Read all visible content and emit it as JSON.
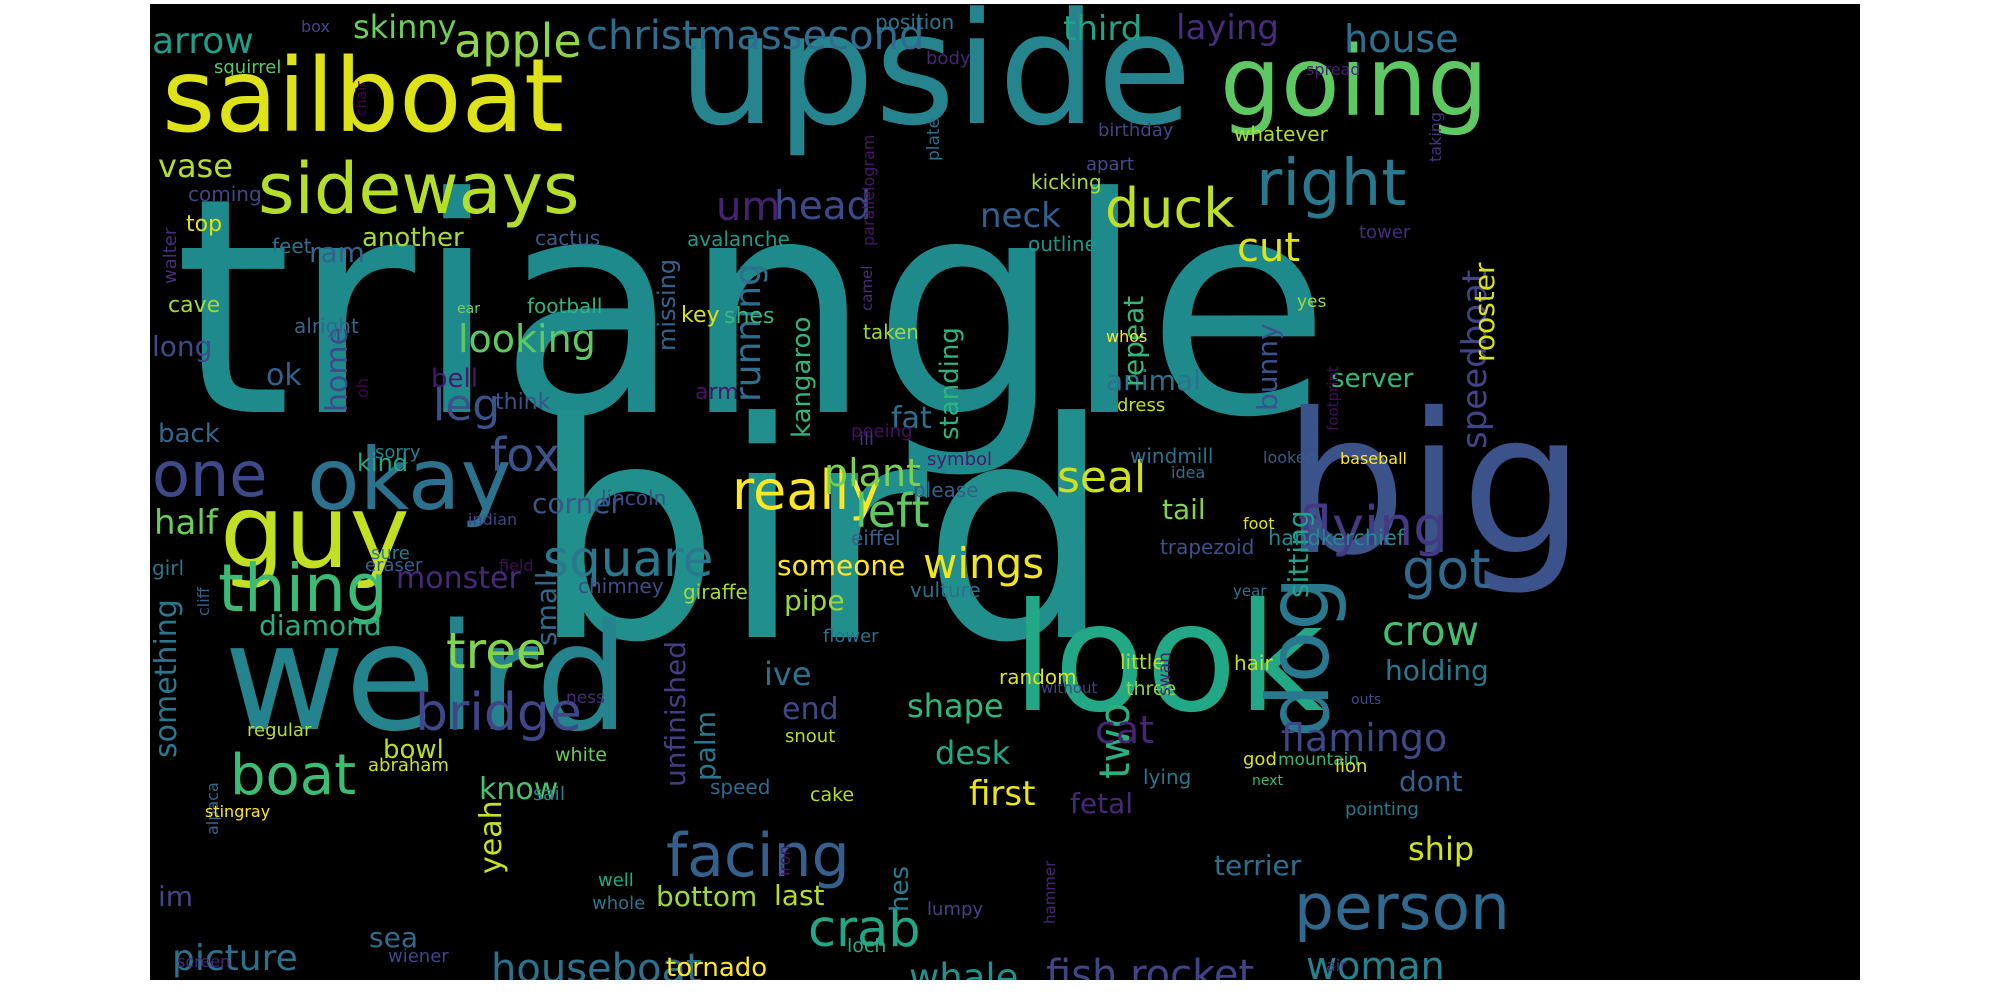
{
  "word_cloud": {
    "background": "#000000",
    "words": [
      {
        "text": "triangle",
        "color": "#1f8a8c"
      },
      {
        "text": "bird",
        "color": "#21908c"
      },
      {
        "text": "upside",
        "color": "#25848e"
      },
      {
        "text": "big",
        "color": "#3b528b"
      },
      {
        "text": "weird",
        "color": "#25838e"
      },
      {
        "text": "look",
        "color": "#22a884"
      },
      {
        "text": "sailboat",
        "color": "#dde318"
      },
      {
        "text": "going",
        "color": "#5ec962"
      },
      {
        "text": "guy",
        "color": "#c2df23"
      },
      {
        "text": "okay",
        "color": "#2c728e"
      },
      {
        "text": "dog",
        "color": "#2a788e"
      },
      {
        "text": "sideways",
        "color": "#b5de2b"
      },
      {
        "text": "right",
        "color": "#2a788e"
      },
      {
        "text": "thing",
        "color": "#3bbb75"
      },
      {
        "text": "one",
        "color": "#3e4989"
      },
      {
        "text": "person",
        "color": "#31688e"
      },
      {
        "text": "facing",
        "color": "#35608d"
      },
      {
        "text": "flying",
        "color": "#443983"
      },
      {
        "text": "boat",
        "color": "#3dbc74"
      },
      {
        "text": "bridge",
        "color": "#3f4788"
      },
      {
        "text": "tree",
        "color": "#84d44b"
      },
      {
        "text": "really",
        "color": "#fde725"
      },
      {
        "text": "duck",
        "color": "#bddf26"
      },
      {
        "text": "crab",
        "color": "#22a785"
      },
      {
        "text": "square",
        "color": "#2a788e"
      },
      {
        "text": "got",
        "color": "#31688e"
      },
      {
        "text": "houseboat",
        "color": "#2c728e"
      },
      {
        "text": "fish rocket",
        "color": "#414487"
      },
      {
        "text": "apple",
        "color": "#8ed645"
      },
      {
        "text": "christmassecond",
        "color": "#2f6c8e"
      },
      {
        "text": "house",
        "color": "#2d708e"
      },
      {
        "text": "crow",
        "color": "#43bf71"
      },
      {
        "text": "left",
        "color": "#5ec962"
      },
      {
        "text": "fox",
        "color": "#3b528b"
      },
      {
        "text": "wings",
        "color": "#f1e51d"
      },
      {
        "text": "flamingo",
        "color": "#3f4788"
      },
      {
        "text": "two",
        "color": "#2ab07f"
      },
      {
        "text": "whale",
        "color": "#21918c"
      },
      {
        "text": "woman",
        "color": "#26828e"
      },
      {
        "text": "picture",
        "color": "#2d708e"
      },
      {
        "text": "head",
        "color": "#3e4989"
      },
      {
        "text": "um",
        "color": "#482173"
      },
      {
        "text": "leg",
        "color": "#3a538b"
      },
      {
        "text": "seal",
        "color": "#d0e11c"
      },
      {
        "text": "running",
        "color": "#2d708e"
      },
      {
        "text": "looking",
        "color": "#5ec962"
      },
      {
        "text": "plant",
        "color": "#7ad151"
      },
      {
        "text": "neck",
        "color": "#355f8d"
      },
      {
        "text": "cut",
        "color": "#dde318"
      },
      {
        "text": "arrow",
        "color": "#1f9e89"
      },
      {
        "text": "skinny",
        "color": "#6ccd5a"
      },
      {
        "text": "third",
        "color": "#20a486"
      },
      {
        "text": "laying",
        "color": "#472d7b"
      },
      {
        "text": "vase",
        "color": "#b2dd2d"
      },
      {
        "text": "speedboat",
        "color": "#414487"
      },
      {
        "text": "rooster",
        "color": "#d8e219"
      },
      {
        "text": "monster",
        "color": "#482878"
      },
      {
        "text": "diamond",
        "color": "#29af7f"
      },
      {
        "text": "something",
        "color": "#2a778e"
      },
      {
        "text": "half",
        "color": "#6ccd5a"
      },
      {
        "text": "corner",
        "color": "#38588c"
      },
      {
        "text": "someone",
        "color": "#fde725"
      },
      {
        "text": "pipe",
        "color": "#98d83e"
      },
      {
        "text": "tail",
        "color": "#7fd34e"
      },
      {
        "text": "animal",
        "color": "#2c728e"
      },
      {
        "text": "bunny",
        "color": "#3b528b"
      },
      {
        "text": "sitting",
        "color": "#20a386"
      },
      {
        "text": "holding",
        "color": "#2a788e"
      },
      {
        "text": "cat",
        "color": "#482475"
      },
      {
        "text": "shape",
        "color": "#32b67a"
      },
      {
        "text": "desk",
        "color": "#22a884"
      },
      {
        "text": "first",
        "color": "#eae51a"
      },
      {
        "text": "fetal",
        "color": "#482878"
      },
      {
        "text": "dont",
        "color": "#355f8d"
      },
      {
        "text": "ship",
        "color": "#d2e21b"
      },
      {
        "text": "terrier",
        "color": "#2e6e8e"
      },
      {
        "text": "bottom",
        "color": "#9dd93b"
      },
      {
        "text": "last",
        "color": "#b5de2b"
      },
      {
        "text": "tornado",
        "color": "#fde725"
      },
      {
        "text": "yeah",
        "color": "#c8e020"
      },
      {
        "text": "know",
        "color": "#4ac16d"
      },
      {
        "text": "im",
        "color": "#3f4788"
      },
      {
        "text": "end",
        "color": "#3e4989"
      },
      {
        "text": "ive",
        "color": "#2c728e"
      },
      {
        "text": "palm",
        "color": "#2a788e"
      },
      {
        "text": "unfinished",
        "color": "#433d84"
      },
      {
        "text": "kangaroo",
        "color": "#31b57b"
      },
      {
        "text": "standing",
        "color": "#2fb47c"
      },
      {
        "text": "fat",
        "color": "#2d708e"
      },
      {
        "text": "bell",
        "color": "#481a6c"
      },
      {
        "text": "ok",
        "color": "#34618d"
      },
      {
        "text": "home",
        "color": "#3e4989"
      },
      {
        "text": "ram",
        "color": "#34618d"
      },
      {
        "text": "another",
        "color": "#a5db36"
      },
      {
        "text": "cactus",
        "color": "#365c8d"
      },
      {
        "text": "long",
        "color": "#3e4a89"
      },
      {
        "text": "back",
        "color": "#31688e"
      },
      {
        "text": "kind",
        "color": "#22a884"
      },
      {
        "text": "bowl",
        "color": "#b8de29"
      },
      {
        "text": "sea",
        "color": "#2f6c8e"
      },
      {
        "text": "hes",
        "color": "#287d8e"
      },
      {
        "text": "small",
        "color": "#31688e"
      },
      {
        "text": "repeat",
        "color": "#35b779"
      },
      {
        "text": "missing",
        "color": "#33638d"
      },
      {
        "text": "server",
        "color": "#37b878"
      },
      {
        "text": "windmill",
        "color": "#2d708e"
      },
      {
        "text": "handkerchief",
        "color": "#23898e"
      },
      {
        "text": "trapezoid",
        "color": "#3b528b"
      },
      {
        "text": "vulture",
        "color": "#2d718e"
      },
      {
        "text": "giraffe",
        "color": "#a2da37"
      },
      {
        "text": "chimney",
        "color": "#3e4c8a"
      },
      {
        "text": "eiffel",
        "color": "#34618d"
      },
      {
        "text": "lincoln",
        "color": "#3e4c8a"
      },
      {
        "text": "please",
        "color": "#355e8d"
      },
      {
        "text": "symbol",
        "color": "#481b6d"
      },
      {
        "text": "peeing",
        "color": "#471063"
      },
      {
        "text": "ill",
        "color": "#46327e"
      },
      {
        "text": "taken",
        "color": "#9bd93c"
      },
      {
        "text": "arm",
        "color": "#471365"
      },
      {
        "text": "key",
        "color": "#d8e219"
      },
      {
        "text": "shes",
        "color": "#37b878"
      },
      {
        "text": "think",
        "color": "#3b528b"
      },
      {
        "text": "football",
        "color": "#2fb47c"
      },
      {
        "text": "ear",
        "color": "#7ad151"
      },
      {
        "text": "alright",
        "color": "#31688e"
      },
      {
        "text": "oh",
        "color": "#440154"
      },
      {
        "text": "cave",
        "color": "#a0da39"
      },
      {
        "text": "walter",
        "color": "#472e7c"
      },
      {
        "text": "feet",
        "color": "#2d718e"
      },
      {
        "text": "top",
        "color": "#dde318"
      },
      {
        "text": "coming",
        "color": "#414487"
      },
      {
        "text": "squirrel",
        "color": "#5cc863"
      },
      {
        "text": "chair",
        "color": "#440154"
      },
      {
        "text": "box",
        "color": "#414487"
      },
      {
        "text": "position",
        "color": "#2a768e"
      },
      {
        "text": "body",
        "color": "#482475"
      },
      {
        "text": "parallelogram",
        "color": "#481668"
      },
      {
        "text": "plate",
        "color": "#2d708e"
      },
      {
        "text": "avalanche",
        "color": "#1f9a8a"
      },
      {
        "text": "camel",
        "color": "#472f7d"
      },
      {
        "text": "outline",
        "color": "#1f948c"
      },
      {
        "text": "kicking",
        "color": "#a8db34"
      },
      {
        "text": "apart",
        "color": "#3d4e8a"
      },
      {
        "text": "birthday",
        "color": "#404588"
      },
      {
        "text": "whatever",
        "color": "#addc30"
      },
      {
        "text": "spread",
        "color": "#482475"
      },
      {
        "text": "taking",
        "color": "#46337f"
      },
      {
        "text": "tower",
        "color": "#472c7a"
      },
      {
        "text": "yes",
        "color": "#a2da37"
      },
      {
        "text": "whos",
        "color": "#fde725"
      },
      {
        "text": "dress",
        "color": "#c0df25"
      },
      {
        "text": "footprint",
        "color": "#460b5e"
      },
      {
        "text": "baseball",
        "color": "#fde725"
      },
      {
        "text": "looked",
        "color": "#365d8d"
      },
      {
        "text": "idea",
        "color": "#2d708e"
      },
      {
        "text": "foot",
        "color": "#e2e418"
      },
      {
        "text": "year",
        "color": "#2c738e"
      },
      {
        "text": "hair",
        "color": "#c2df23"
      },
      {
        "text": "little",
        "color": "#b2dd2d"
      },
      {
        "text": "three",
        "color": "#8bd646"
      },
      {
        "text": "swan",
        "color": "#482173"
      },
      {
        "text": "god",
        "color": "#dde318"
      },
      {
        "text": "lying",
        "color": "#2a768e"
      },
      {
        "text": "mountain",
        "color": "#33b67a"
      },
      {
        "text": "lion",
        "color": "#d8e219"
      },
      {
        "text": "pointing",
        "color": "#2a788e"
      },
      {
        "text": "next",
        "color": "#38b977"
      },
      {
        "text": "outs",
        "color": "#3e4c8a"
      },
      {
        "text": "without",
        "color": "#404588"
      },
      {
        "text": "random",
        "color": "#dfe318"
      },
      {
        "text": "snout",
        "color": "#bade28"
      },
      {
        "text": "speed",
        "color": "#2f6b8e"
      },
      {
        "text": "cake",
        "color": "#b0dd2f"
      },
      {
        "text": "iron",
        "color": "#471365"
      },
      {
        "text": "hammer",
        "color": "#482677"
      },
      {
        "text": "lumpy",
        "color": "#414487"
      },
      {
        "text": "loch",
        "color": "#29af7f"
      },
      {
        "text": "well",
        "color": "#23a983"
      },
      {
        "text": "whole",
        "color": "#2c738e"
      },
      {
        "text": "sail",
        "color": "#297b8e"
      },
      {
        "text": "white",
        "color": "#69cd5b"
      },
      {
        "text": "ness",
        "color": "#472a7a"
      },
      {
        "text": "flower",
        "color": "#2c728e"
      },
      {
        "text": "field",
        "color": "#460a5d"
      },
      {
        "text": "sure",
        "color": "#287c8e"
      },
      {
        "text": "eraser",
        "color": "#34618d"
      },
      {
        "text": "girl",
        "color": "#2b748e"
      },
      {
        "text": "cliff",
        "color": "#33638d"
      },
      {
        "text": "regular",
        "color": "#b5de2b"
      },
      {
        "text": "abraham",
        "color": "#cae11f"
      },
      {
        "text": "alpaca",
        "color": "#31688e"
      },
      {
        "text": "stingray",
        "color": "#fde725"
      },
      {
        "text": "wiener",
        "color": "#3f4788"
      },
      {
        "text": "screen",
        "color": "#482878"
      },
      {
        "text": "sorry",
        "color": "#25838e"
      },
      {
        "text": "indian",
        "color": "#404588"
      },
      {
        "text": "air",
        "color": "#46327e"
      }
    ]
  }
}
